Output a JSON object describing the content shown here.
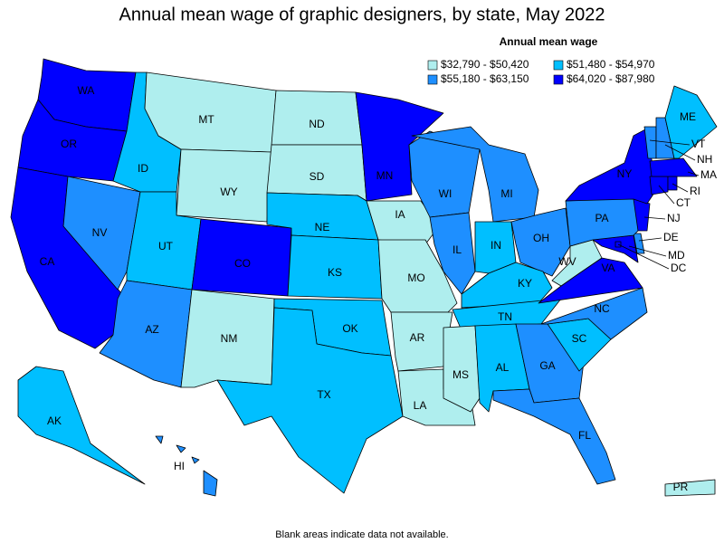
{
  "title": "Annual mean wage of graphic designers, by state, May 2022",
  "legend": {
    "title": "Annual mean wage",
    "items": [
      {
        "label": "$32,790 - $50,420",
        "color": "#afeeee"
      },
      {
        "label": "$51,480 - $54,970",
        "color": "#00bfff"
      },
      {
        "label": "$55,180 - $63,150",
        "color": "#1e8fff"
      },
      {
        "label": "$64,020 - $87,980",
        "color": "#0000ff"
      }
    ]
  },
  "states": [
    {
      "abbr": "WA",
      "bin": 3
    },
    {
      "abbr": "OR",
      "bin": 3
    },
    {
      "abbr": "CA",
      "bin": 3
    },
    {
      "abbr": "NV",
      "bin": 2
    },
    {
      "abbr": "ID",
      "bin": 1
    },
    {
      "abbr": "MT",
      "bin": 0
    },
    {
      "abbr": "WY",
      "bin": 0
    },
    {
      "abbr": "UT",
      "bin": 1
    },
    {
      "abbr": "AZ",
      "bin": 2
    },
    {
      "abbr": "CO",
      "bin": 3
    },
    {
      "abbr": "NM",
      "bin": 0
    },
    {
      "abbr": "ND",
      "bin": 0
    },
    {
      "abbr": "SD",
      "bin": 0
    },
    {
      "abbr": "NE",
      "bin": 1
    },
    {
      "abbr": "KS",
      "bin": 1
    },
    {
      "abbr": "OK",
      "bin": 1
    },
    {
      "abbr": "TX",
      "bin": 1
    },
    {
      "abbr": "MN",
      "bin": 3
    },
    {
      "abbr": "IA",
      "bin": 0
    },
    {
      "abbr": "MO",
      "bin": 0
    },
    {
      "abbr": "AR",
      "bin": 0
    },
    {
      "abbr": "LA",
      "bin": 0
    },
    {
      "abbr": "WI",
      "bin": 2
    },
    {
      "abbr": "IL",
      "bin": 2
    },
    {
      "abbr": "MI",
      "bin": 2
    },
    {
      "abbr": "IN",
      "bin": 1
    },
    {
      "abbr": "OH",
      "bin": 2
    },
    {
      "abbr": "KY",
      "bin": 1
    },
    {
      "abbr": "TN",
      "bin": 1
    },
    {
      "abbr": "MS",
      "bin": 0
    },
    {
      "abbr": "AL",
      "bin": 1
    },
    {
      "abbr": "GA",
      "bin": 2
    },
    {
      "abbr": "FL",
      "bin": 2
    },
    {
      "abbr": "SC",
      "bin": 1
    },
    {
      "abbr": "NC",
      "bin": 2
    },
    {
      "abbr": "VA",
      "bin": 3
    },
    {
      "abbr": "WV",
      "bin": 0
    },
    {
      "abbr": "MD",
      "bin": 3
    },
    {
      "abbr": "DE",
      "bin": 2
    },
    {
      "abbr": "DC",
      "bin": 3
    },
    {
      "abbr": "PA",
      "bin": 2
    },
    {
      "abbr": "NJ",
      "bin": 3
    },
    {
      "abbr": "NY",
      "bin": 3
    },
    {
      "abbr": "CT",
      "bin": 3
    },
    {
      "abbr": "RI",
      "bin": 3
    },
    {
      "abbr": "MA",
      "bin": 3
    },
    {
      "abbr": "VT",
      "bin": 2
    },
    {
      "abbr": "NH",
      "bin": 2
    },
    {
      "abbr": "ME",
      "bin": 1
    },
    {
      "abbr": "AK",
      "bin": 1
    },
    {
      "abbr": "HI",
      "bin": 2
    },
    {
      "abbr": "PR",
      "bin": 0
    }
  ],
  "footnote": "Blank areas indicate data not available."
}
